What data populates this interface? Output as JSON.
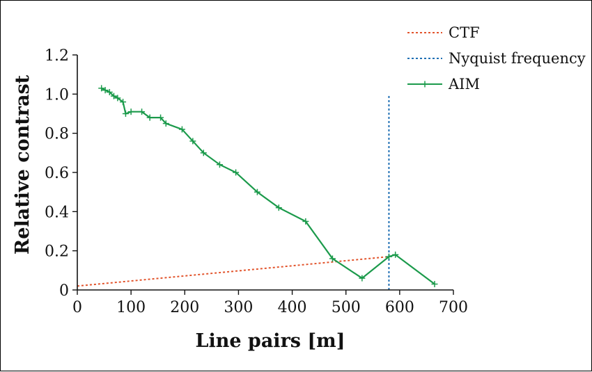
{
  "chart_data": {
    "type": "line",
    "title": "",
    "xlabel": "Line pairs [m]",
    "ylabel": "Relative contrast",
    "xlim": [
      0,
      700
    ],
    "ylim": [
      0,
      1.2
    ],
    "x_ticks": [
      0,
      100,
      200,
      300,
      400,
      500,
      600,
      700
    ],
    "x_tick_labels": [
      "0",
      "100",
      "200",
      "300",
      "400",
      "500",
      "600",
      "700"
    ],
    "y_ticks": [
      0,
      0.2,
      0.4,
      0.6,
      0.8,
      1.0,
      1.2
    ],
    "y_tick_labels": [
      "0",
      "0.2",
      "0.4",
      "0.6",
      "0.8",
      "1.0",
      "1.2"
    ],
    "grid": false,
    "legend_position": "top-right",
    "series": [
      {
        "name": "CTF",
        "style": "dotted",
        "color": "#e2542c",
        "x": [
          0,
          580
        ],
        "y": [
          0.02,
          0.17
        ]
      },
      {
        "name": "Nyquist frequency",
        "style": "dotted",
        "color": "#1f6fb4",
        "x": [
          580,
          580
        ],
        "y": [
          0,
          1.0
        ]
      },
      {
        "name": "AIM",
        "style": "solid-markers",
        "marker": "+",
        "color": "#1b9a4b",
        "x": [
          45,
          52,
          60,
          68,
          75,
          85,
          90,
          100,
          120,
          135,
          155,
          165,
          195,
          215,
          235,
          265,
          295,
          335,
          375,
          425,
          475,
          530,
          580,
          592,
          665
        ],
        "y": [
          1.03,
          1.02,
          1.01,
          0.99,
          0.98,
          0.96,
          0.9,
          0.91,
          0.91,
          0.88,
          0.88,
          0.85,
          0.82,
          0.76,
          0.7,
          0.64,
          0.6,
          0.5,
          0.42,
          0.35,
          0.16,
          0.06,
          0.17,
          0.18,
          0.03
        ]
      }
    ]
  }
}
